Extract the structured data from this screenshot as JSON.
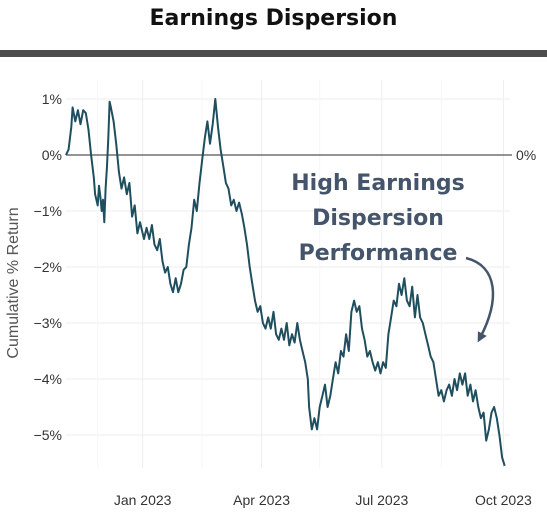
{
  "title": "Earnings Dispersion",
  "colors": {
    "line": "#1f4e5f",
    "zero_line": "#555555",
    "grid": "#eeeeee",
    "annotation": "#44546a",
    "title_rule": "#4d4d4d"
  },
  "chart_data": {
    "type": "line",
    "title": "Earnings Dispersion",
    "ylabel": "Cumulative % Return",
    "xlabel": "",
    "grid": true,
    "legend": "none",
    "y_ticks": [
      1,
      0,
      -1,
      -2,
      -3,
      -4,
      -5
    ],
    "y_tick_labels": [
      "1%",
      "0%",
      "−1%",
      "−2%",
      "−3%",
      "−4%",
      "−5%"
    ],
    "ylim": [
      -5.6,
      1.1
    ],
    "xlim": [
      "2022-11-04",
      "2023-10-06"
    ],
    "x_ticks": [
      "2023-01-01",
      "2023-04-01",
      "2023-07-01",
      "2023-10-01"
    ],
    "x_tick_labels": [
      "Jan 2023",
      "Apr 2023",
      "Jul 2023",
      "Oct 2023"
    ],
    "reference_line": {
      "y": 0,
      "label": "0%"
    },
    "annotation": {
      "lines": [
        "High Earnings",
        "Dispersion",
        "Performance"
      ],
      "arrow": "curved-down"
    },
    "series": [
      {
        "points": [
          [
            "2022-11-04",
            0.0
          ],
          [
            "2022-11-06",
            0.1
          ],
          [
            "2022-11-08",
            0.5
          ],
          [
            "2022-11-09",
            0.85
          ],
          [
            "2022-11-11",
            0.6
          ],
          [
            "2022-11-13",
            0.8
          ],
          [
            "2022-11-15",
            0.55
          ],
          [
            "2022-11-17",
            0.8
          ],
          [
            "2022-11-19",
            0.75
          ],
          [
            "2022-11-21",
            0.45
          ],
          [
            "2022-11-23",
            0.0
          ],
          [
            "2022-11-25",
            -0.4
          ],
          [
            "2022-11-26",
            -0.7
          ],
          [
            "2022-11-28",
            -0.9
          ],
          [
            "2022-11-29",
            -0.55
          ],
          [
            "2022-11-30",
            -0.75
          ],
          [
            "2022-12-01",
            -1.0
          ],
          [
            "2022-12-02",
            -0.8
          ],
          [
            "2022-12-03",
            -1.2
          ],
          [
            "2022-12-04",
            -0.6
          ],
          [
            "2022-12-05",
            -0.2
          ],
          [
            "2022-12-06",
            0.3
          ],
          [
            "2022-12-07",
            0.95
          ],
          [
            "2022-12-08",
            0.85
          ],
          [
            "2022-12-10",
            0.6
          ],
          [
            "2022-12-12",
            0.2
          ],
          [
            "2022-12-14",
            -0.3
          ],
          [
            "2022-12-16",
            -0.6
          ],
          [
            "2022-12-18",
            -0.4
          ],
          [
            "2022-12-20",
            -0.7
          ],
          [
            "2022-12-22",
            -0.5
          ],
          [
            "2022-12-24",
            -1.1
          ],
          [
            "2022-12-26",
            -0.9
          ],
          [
            "2022-12-28",
            -1.4
          ],
          [
            "2022-12-30",
            -1.2
          ],
          [
            "2023-01-02",
            -1.5
          ],
          [
            "2023-01-04",
            -1.3
          ],
          [
            "2023-01-06",
            -1.5
          ],
          [
            "2023-01-08",
            -1.25
          ],
          [
            "2023-01-10",
            -1.6
          ],
          [
            "2023-01-12",
            -1.7
          ],
          [
            "2023-01-14",
            -1.5
          ],
          [
            "2023-01-16",
            -1.9
          ],
          [
            "2023-01-18",
            -2.1
          ],
          [
            "2023-01-20",
            -2.0
          ],
          [
            "2023-01-22",
            -2.3
          ],
          [
            "2023-01-24",
            -2.45
          ],
          [
            "2023-01-26",
            -2.2
          ],
          [
            "2023-01-28",
            -2.45
          ],
          [
            "2023-01-30",
            -2.3
          ],
          [
            "2023-02-01",
            -2.05
          ],
          [
            "2023-02-03",
            -2.0
          ],
          [
            "2023-02-05",
            -1.6
          ],
          [
            "2023-02-07",
            -1.3
          ],
          [
            "2023-02-09",
            -0.8
          ],
          [
            "2023-02-11",
            -1.0
          ],
          [
            "2023-02-13",
            -0.5
          ],
          [
            "2023-02-15",
            -0.1
          ],
          [
            "2023-02-17",
            0.3
          ],
          [
            "2023-02-19",
            0.6
          ],
          [
            "2023-02-21",
            0.2
          ],
          [
            "2023-02-23",
            0.55
          ],
          [
            "2023-02-25",
            1.0
          ],
          [
            "2023-02-27",
            0.5
          ],
          [
            "2023-03-01",
            0.1
          ],
          [
            "2023-03-03",
            -0.2
          ],
          [
            "2023-03-05",
            -0.5
          ],
          [
            "2023-03-07",
            -0.6
          ],
          [
            "2023-03-09",
            -0.9
          ],
          [
            "2023-03-11",
            -0.8
          ],
          [
            "2023-03-13",
            -1.0
          ],
          [
            "2023-03-15",
            -0.85
          ],
          [
            "2023-03-17",
            -1.05
          ],
          [
            "2023-03-19",
            -1.3
          ],
          [
            "2023-03-21",
            -1.6
          ],
          [
            "2023-03-23",
            -2.0
          ],
          [
            "2023-03-25",
            -2.3
          ],
          [
            "2023-03-27",
            -2.6
          ],
          [
            "2023-03-29",
            -2.8
          ],
          [
            "2023-03-31",
            -2.7
          ],
          [
            "2023-04-02",
            -3.0
          ],
          [
            "2023-04-04",
            -3.1
          ],
          [
            "2023-04-06",
            -2.9
          ],
          [
            "2023-04-08",
            -3.1
          ],
          [
            "2023-04-10",
            -2.8
          ],
          [
            "2023-04-12",
            -3.2
          ],
          [
            "2023-04-14",
            -3.3
          ],
          [
            "2023-04-16",
            -3.1
          ],
          [
            "2023-04-18",
            -3.3
          ],
          [
            "2023-04-20",
            -3.0
          ],
          [
            "2023-04-22",
            -3.4
          ],
          [
            "2023-04-24",
            -3.2
          ],
          [
            "2023-04-26",
            -3.35
          ],
          [
            "2023-04-28",
            -3.0
          ],
          [
            "2023-04-30",
            -3.3
          ],
          [
            "2023-05-02",
            -3.5
          ],
          [
            "2023-05-04",
            -3.7
          ],
          [
            "2023-05-06",
            -4.0
          ],
          [
            "2023-05-07",
            -4.5
          ],
          [
            "2023-05-09",
            -4.9
          ],
          [
            "2023-05-11",
            -4.7
          ],
          [
            "2023-05-13",
            -4.9
          ],
          [
            "2023-05-15",
            -4.5
          ],
          [
            "2023-05-17",
            -4.3
          ],
          [
            "2023-05-19",
            -4.1
          ],
          [
            "2023-05-21",
            -4.5
          ],
          [
            "2023-05-23",
            -4.3
          ],
          [
            "2023-05-25",
            -4.0
          ],
          [
            "2023-05-27",
            -3.7
          ],
          [
            "2023-05-29",
            -3.9
          ],
          [
            "2023-05-31",
            -3.5
          ],
          [
            "2023-06-02",
            -3.6
          ],
          [
            "2023-06-04",
            -3.2
          ],
          [
            "2023-06-06",
            -3.5
          ],
          [
            "2023-06-08",
            -2.8
          ],
          [
            "2023-06-10",
            -2.6
          ],
          [
            "2023-06-12",
            -2.8
          ],
          [
            "2023-06-14",
            -2.7
          ],
          [
            "2023-06-16",
            -3.1
          ],
          [
            "2023-06-18",
            -3.3
          ],
          [
            "2023-06-20",
            -3.6
          ],
          [
            "2023-06-22",
            -3.5
          ],
          [
            "2023-06-24",
            -3.7
          ],
          [
            "2023-06-26",
            -3.85
          ],
          [
            "2023-06-28",
            -3.7
          ],
          [
            "2023-06-30",
            -3.9
          ],
          [
            "2023-07-02",
            -3.7
          ],
          [
            "2023-07-04",
            -3.8
          ],
          [
            "2023-07-06",
            -3.2
          ],
          [
            "2023-07-08",
            -2.9
          ],
          [
            "2023-07-10",
            -2.6
          ],
          [
            "2023-07-12",
            -2.7
          ],
          [
            "2023-07-14",
            -2.3
          ],
          [
            "2023-07-16",
            -2.5
          ],
          [
            "2023-07-18",
            -2.2
          ],
          [
            "2023-07-20",
            -2.6
          ],
          [
            "2023-07-22",
            -2.7
          ],
          [
            "2023-07-24",
            -2.35
          ],
          [
            "2023-07-26",
            -2.9
          ],
          [
            "2023-07-28",
            -2.5
          ],
          [
            "2023-07-30",
            -2.9
          ],
          [
            "2023-08-01",
            -3.0
          ],
          [
            "2023-08-03",
            -3.2
          ],
          [
            "2023-08-05",
            -3.4
          ],
          [
            "2023-08-07",
            -3.6
          ],
          [
            "2023-08-09",
            -3.7
          ],
          [
            "2023-08-11",
            -4.0
          ],
          [
            "2023-08-13",
            -4.3
          ],
          [
            "2023-08-15",
            -4.2
          ],
          [
            "2023-08-17",
            -4.4
          ],
          [
            "2023-08-19",
            -4.2
          ],
          [
            "2023-08-21",
            -4.1
          ],
          [
            "2023-08-23",
            -4.3
          ],
          [
            "2023-08-25",
            -4.0
          ],
          [
            "2023-08-27",
            -4.2
          ],
          [
            "2023-08-29",
            -3.9
          ],
          [
            "2023-08-31",
            -4.1
          ],
          [
            "2023-09-02",
            -3.9
          ],
          [
            "2023-09-04",
            -4.3
          ],
          [
            "2023-09-06",
            -4.1
          ],
          [
            "2023-09-08",
            -4.4
          ],
          [
            "2023-09-10",
            -4.2
          ],
          [
            "2023-09-12",
            -4.5
          ],
          [
            "2023-09-14",
            -4.7
          ],
          [
            "2023-09-16",
            -4.6
          ],
          [
            "2023-09-18",
            -5.1
          ],
          [
            "2023-09-20",
            -4.9
          ],
          [
            "2023-09-22",
            -4.6
          ],
          [
            "2023-09-24",
            -4.5
          ],
          [
            "2023-09-26",
            -4.7
          ],
          [
            "2023-09-28",
            -5.0
          ],
          [
            "2023-09-30",
            -5.4
          ],
          [
            "2023-10-02",
            -5.55
          ]
        ]
      }
    ]
  }
}
